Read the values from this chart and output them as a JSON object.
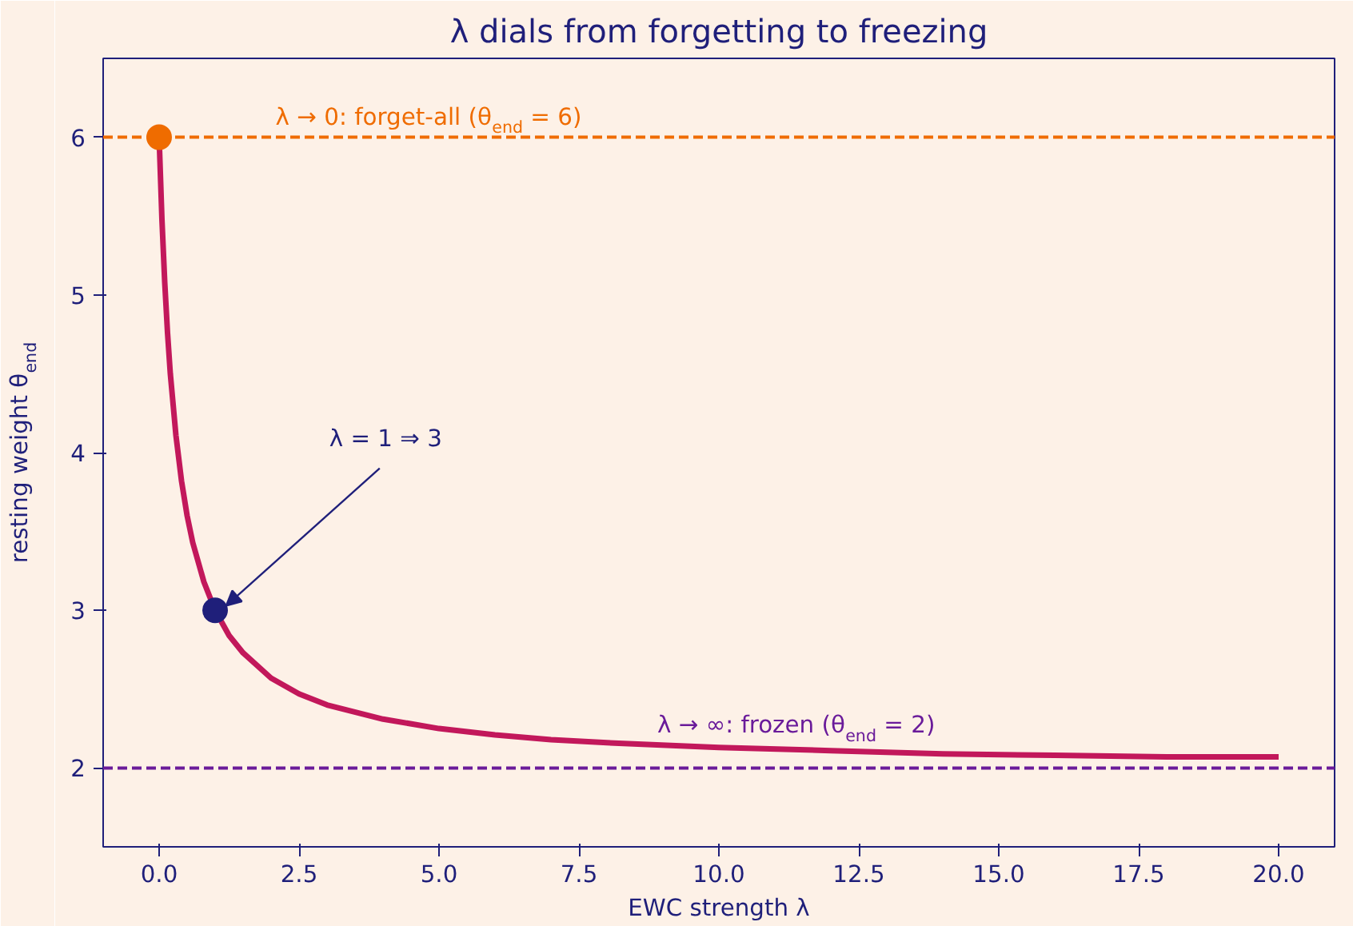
{
  "chart_data": {
    "type": "line",
    "title": "λ dials from forgetting to freezing",
    "xlabel": "EWC strength λ",
    "ylabel": "resting weight θ$_{end}$",
    "series": [
      {
        "color": "#c2185b",
        "x": [
          0,
          0.05,
          0.1,
          0.15,
          0.2,
          0.3,
          0.4,
          0.5,
          0.6,
          0.8,
          1,
          1.25,
          1.5,
          2,
          2.5,
          3,
          4,
          5,
          6,
          7,
          8,
          10,
          12,
          14,
          16,
          18,
          20
        ],
        "values": [
          6,
          5.48,
          5.08,
          4.76,
          4.5,
          4.11,
          3.82,
          3.6,
          3.43,
          3.18,
          3,
          2.84,
          2.73,
          2.57,
          2.47,
          2.4,
          2.31,
          2.25,
          2.21,
          2.18,
          2.16,
          2.13,
          2.11,
          2.09,
          2.08,
          2.07,
          2.07
        ]
      },
      {
        "type": "scatter",
        "marker": "circle",
        "color": "#ef6c00",
        "x": [
          0
        ],
        "values": [
          6
        ]
      },
      {
        "type": "scatter",
        "marker": "circle",
        "color": "#1f1f7a",
        "x": [
          1
        ],
        "values": [
          3
        ]
      }
    ],
    "ref_lines": [
      {
        "axis": "y",
        "value": 6,
        "label": "λ → 0: forget-all (θ$_{end}$ = 6)",
        "color": "#ef6c00",
        "line_style": "dashed"
      },
      {
        "axis": "y",
        "value": 2,
        "label": "λ → ∞: frozen (θ$_{end}$ = 2)",
        "color": "#6a1b9a",
        "line_style": "dashed"
      }
    ],
    "annotations": [
      {
        "text": "λ = 1 ⇒ 3",
        "x": 1,
        "y": 3
      }
    ],
    "xlim": [
      -1,
      21
    ],
    "ylim": [
      1.5,
      6.5
    ],
    "xticks": [
      {
        "value": 0,
        "label": "0.0"
      },
      {
        "value": 2.5,
        "label": "2.5"
      },
      {
        "value": 5,
        "label": "5.0"
      },
      {
        "value": 7.5,
        "label": "7.5"
      },
      {
        "value": 10,
        "label": "10.0"
      },
      {
        "value": 12.5,
        "label": "12.5"
      },
      {
        "value": 15,
        "label": "15.0"
      },
      {
        "value": 17.5,
        "label": "17.5"
      },
      {
        "value": 20,
        "label": "20.0"
      }
    ],
    "yticks": [
      2,
      3,
      4,
      5,
      6
    ],
    "grid": false,
    "line_style": "solid"
  }
}
